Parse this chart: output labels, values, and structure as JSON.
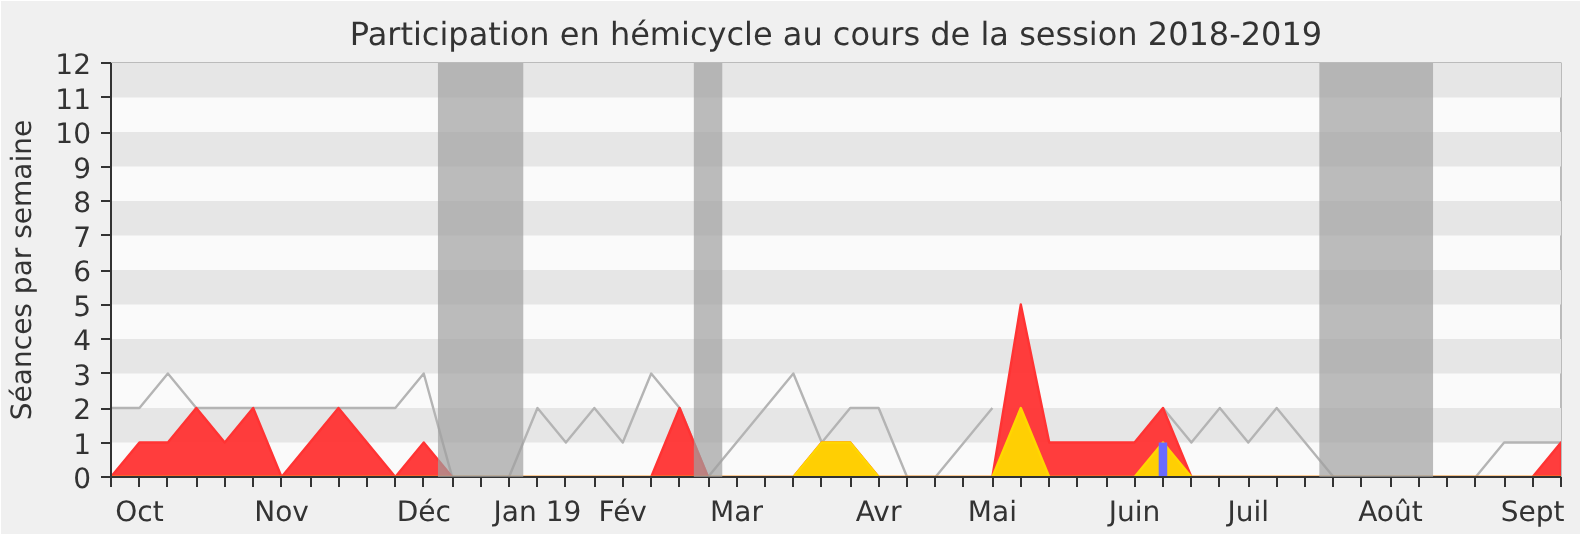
{
  "chart_data": {
    "type": "area",
    "title": "Participation en hémicycle au cours de la session 2018-2019",
    "ylabel": "Séances par semaine",
    "categories": [
      null,
      "Oct",
      null,
      null,
      null,
      null,
      "Nov",
      null,
      null,
      null,
      null,
      "Déc",
      null,
      null,
      null,
      "Jan 19",
      null,
      null,
      "Fév",
      null,
      null,
      null,
      "Mar",
      null,
      null,
      null,
      null,
      "Avr",
      null,
      null,
      null,
      "Mai",
      null,
      null,
      null,
      null,
      "Juin",
      null,
      null,
      null,
      "Juil",
      null,
      null,
      null,
      null,
      "Août",
      null,
      null,
      null,
      null,
      "Sept",
      null
    ],
    "series": [
      {
        "type": "line",
        "color": "#b4b4b4",
        "values": [
          2,
          2,
          3,
          2,
          2,
          2,
          2,
          2,
          2,
          2,
          2,
          3,
          0,
          0,
          0,
          2,
          1,
          2,
          1,
          3,
          2,
          0,
          1,
          2,
          3,
          1,
          2,
          2,
          0,
          0,
          1,
          2,
          null,
          null,
          null,
          null,
          null,
          2,
          1,
          2,
          1,
          2,
          1,
          0,
          0,
          0,
          0,
          0,
          0,
          1,
          1,
          1
        ]
      },
      {
        "color": "#ff3333",
        "values": [
          0,
          1,
          1,
          2,
          1,
          2,
          0,
          1,
          2,
          1,
          0,
          1,
          0,
          0,
          0,
          0,
          0,
          0,
          0,
          0,
          2,
          0,
          0,
          0,
          0,
          1,
          1,
          0,
          0,
          0,
          0,
          0,
          5,
          1,
          1,
          1,
          1,
          2,
          0,
          0,
          0,
          0,
          0,
          0,
          0,
          0,
          0,
          0,
          0,
          0,
          0,
          1
        ]
      },
      {
        "color": "#ffd700",
        "values": [
          0,
          0,
          0,
          0,
          0,
          0,
          0,
          0,
          0,
          0,
          0,
          0,
          0,
          0,
          0,
          0,
          0,
          0,
          0,
          0,
          0,
          0,
          0,
          0,
          0,
          1,
          1,
          0,
          0,
          0,
          0,
          0,
          2,
          0,
          0,
          0,
          0,
          1,
          0,
          0,
          0,
          0,
          0,
          0,
          0,
          0,
          0,
          0,
          0,
          0,
          0,
          0
        ]
      },
      {
        "type": "bar",
        "color": "#6a6aff",
        "values": [
          null,
          null,
          null,
          null,
          null,
          null,
          null,
          null,
          null,
          null,
          null,
          null,
          null,
          null,
          null,
          null,
          null,
          null,
          null,
          null,
          null,
          null,
          null,
          null,
          null,
          null,
          null,
          null,
          null,
          null,
          null,
          null,
          null,
          null,
          null,
          null,
          null,
          1,
          null,
          null,
          null,
          null,
          null,
          null,
          null,
          null,
          null,
          null,
          null,
          null,
          null,
          null
        ]
      }
    ],
    "ylim": [
      0,
      12
    ],
    "yticks": [
      0,
      1,
      2,
      3,
      4,
      5,
      6,
      7,
      8,
      9,
      10,
      11,
      12
    ]
  }
}
